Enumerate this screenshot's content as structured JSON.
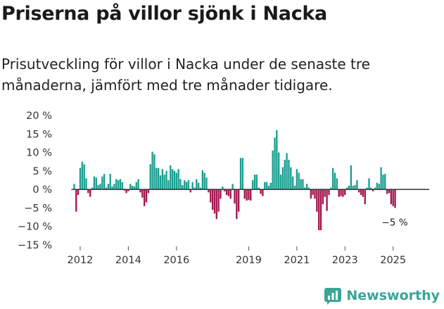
{
  "header": {
    "title": "Priserna på villor sjönk i Nacka",
    "subtitle": "Prisutveckling för villor i Nacka under de senaste tre månaderna, jämfört med tre månader tidigare."
  },
  "brand": {
    "name": "Newsworthy"
  },
  "colors": {
    "positive": "#1b9e8f",
    "negative": "#a3174f",
    "axis": "#333333",
    "brand": "#3aa596"
  },
  "chart_data": {
    "type": "bar",
    "title": "Priserna på villor sjönk i Nacka",
    "xlabel": "",
    "ylabel": "",
    "x_start_year": 2011.75,
    "x_step_years": 0.083333,
    "xlim": [
      2011.3,
      2026.5
    ],
    "ylim": [
      -15,
      20
    ],
    "y_ticks": [
      20,
      15,
      10,
      5,
      0,
      -5,
      -10,
      -15
    ],
    "y_tick_labels": [
      "20 %",
      "15 %",
      "10 %",
      "5 %",
      "0 %",
      "−5 %",
      "−10 %",
      "−15 %"
    ],
    "x_ticks": [
      2012,
      2014,
      2016,
      2019,
      2021,
      2023,
      2025
    ],
    "x_tick_labels": [
      "2012",
      "2014",
      "2016",
      "2019",
      "2021",
      "2023",
      "2025"
    ],
    "annotation": "−5 %",
    "values": [
      1.5,
      -6.0,
      -1.5,
      5.8,
      7.5,
      6.8,
      3.0,
      -1.0,
      -2.0,
      0.5,
      3.5,
      3.2,
      1.2,
      1.5,
      3.5,
      4.2,
      0.5,
      1.5,
      4.2,
      0.8,
      1.5,
      2.8,
      2.5,
      2.8,
      2.0,
      -0.3,
      -1.0,
      -0.5,
      1.5,
      1.0,
      0.8,
      2.0,
      2.8,
      -0.8,
      -2.2,
      -4.5,
      -3.5,
      -1.0,
      6.8,
      10.2,
      9.5,
      5.8,
      5.8,
      3.8,
      5.5,
      4.0,
      5.0,
      2.5,
      6.5,
      5.5,
      5.0,
      4.5,
      5.5,
      2.8,
      1.2,
      2.5,
      2.0,
      2.5,
      -0.8,
      2.0,
      0.5,
      2.8,
      1.8,
      0.5,
      5.2,
      4.5,
      3.2,
      -0.8,
      -3.5,
      -5.5,
      -6.5,
      -8.0,
      -6.0,
      -2.5,
      0.8,
      -0.5,
      -1.5,
      -1.8,
      -2.5,
      1.5,
      -3.8,
      -8.0,
      -6.0,
      8.5,
      8.5,
      -2.5,
      -3.0,
      -2.8,
      -3.0,
      2.5,
      4.0,
      4.0,
      0.5,
      -1.2,
      -1.8,
      2.0,
      2.0,
      1.0,
      1.8,
      10.5,
      14.0,
      16.0,
      10.0,
      4.0,
      6.0,
      8.0,
      9.8,
      8.0,
      6.0,
      3.5,
      1.0,
      5.5,
      4.5,
      2.8,
      2.8,
      0.5,
      1.5,
      0.5,
      -2.5,
      -1.5,
      -2.5,
      -6.0,
      -11.0,
      -11.0,
      -4.0,
      -2.0,
      -5.8,
      -1.5,
      0.5,
      5.8,
      4.5,
      3.0,
      -2.0,
      -1.8,
      -2.0,
      -1.5,
      0.5,
      1.0,
      6.5,
      1.0,
      1.2,
      2.5,
      -0.8,
      -1.5,
      -2.0,
      -4.0,
      0.5,
      3.0,
      0.5,
      -0.5,
      0.5,
      1.8,
      1.5,
      6.0,
      4.0,
      4.2,
      -1.2,
      -1.0,
      -4.0,
      -4.5,
      -5.0
    ]
  }
}
